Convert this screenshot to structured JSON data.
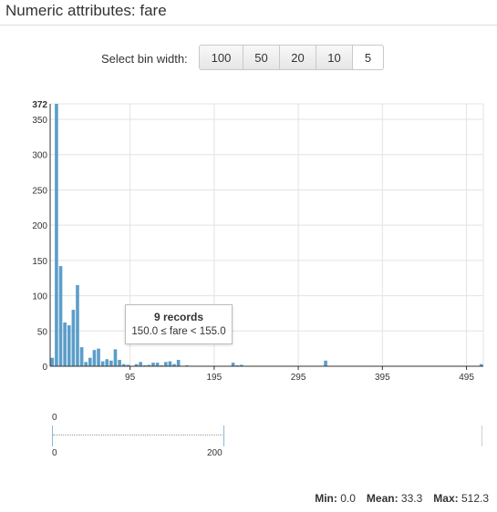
{
  "header": {
    "title": "Numeric attributes: fare"
  },
  "controls": {
    "bin_label": "Select bin width:",
    "bins": [
      "100",
      "50",
      "20",
      "10",
      "5"
    ],
    "active_bin": "5"
  },
  "colors": {
    "bar": "#5b9ec9",
    "grid": "#e3e3e3",
    "axis": "#333333"
  },
  "tooltip": {
    "count": "9 records",
    "range": "150.0 ≤ fare < 155.0"
  },
  "brush": {
    "top_label": "0",
    "min_label": "0",
    "max_label": "200"
  },
  "stats": {
    "min_label": "Min:",
    "min_value": "0.0",
    "mean_label": "Mean:",
    "mean_value": "33.3",
    "max_label": "Max:",
    "max_value": "512.3"
  },
  "chart_data": {
    "type": "bar",
    "title": "",
    "xlabel": "",
    "ylabel": "",
    "bin_width": 5,
    "xlim": [
      0,
      515
    ],
    "ylim": [
      0,
      372
    ],
    "x_ticks": [
      95,
      195,
      295,
      395,
      495
    ],
    "y_ticks": [
      0,
      50,
      100,
      150,
      200,
      250,
      300,
      350,
      372
    ],
    "bin_starts": [
      0,
      5,
      10,
      15,
      20,
      25,
      30,
      35,
      40,
      45,
      50,
      55,
      60,
      65,
      70,
      75,
      80,
      85,
      90,
      95,
      100,
      105,
      110,
      115,
      120,
      125,
      130,
      135,
      140,
      145,
      150,
      155,
      160,
      165,
      170,
      175,
      180,
      185,
      190,
      195,
      200,
      205,
      210,
      215,
      220,
      225,
      230,
      235,
      240,
      245,
      250,
      255,
      260,
      265,
      270,
      275,
      280,
      285,
      290,
      295,
      300,
      305,
      310,
      315,
      320,
      325,
      330,
      335,
      340,
      345,
      350,
      355,
      360,
      365,
      370,
      375,
      380,
      385,
      390,
      395,
      400,
      405,
      410,
      415,
      420,
      425,
      430,
      435,
      440,
      445,
      450,
      455,
      460,
      465,
      470,
      475,
      480,
      485,
      490,
      495,
      500,
      505,
      510
    ],
    "values": [
      12,
      372,
      142,
      62,
      58,
      80,
      115,
      27,
      6,
      12,
      23,
      25,
      7,
      10,
      8,
      24,
      9,
      3,
      2,
      0,
      3,
      6,
      1,
      2,
      5,
      5,
      1,
      6,
      7,
      3,
      9,
      0,
      1,
      0,
      0,
      0,
      0,
      0,
      0,
      0,
      0,
      0,
      0,
      5,
      1,
      2,
      0,
      0,
      0,
      0,
      0,
      0,
      0,
      0,
      0,
      0,
      0,
      0,
      0,
      0,
      0,
      0,
      0,
      0,
      0,
      8,
      0,
      0,
      0,
      0,
      0,
      0,
      0,
      0,
      0,
      0,
      0,
      0,
      0,
      0,
      0,
      0,
      0,
      0,
      0,
      0,
      0,
      0,
      0,
      0,
      0,
      0,
      0,
      0,
      0,
      0,
      0,
      0,
      0,
      0,
      0,
      0,
      3
    ]
  }
}
